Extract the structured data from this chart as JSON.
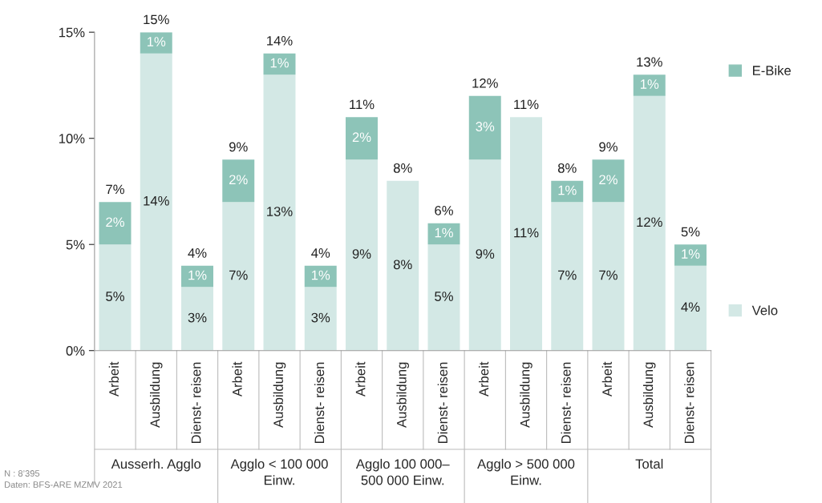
{
  "chart_data": {
    "type": "bar",
    "stacked": true,
    "categories": [
      "Arbeit",
      "Ausbildung",
      "Dienst- reisen",
      "Arbeit",
      "Ausbildung",
      "Dienst- reisen",
      "Arbeit",
      "Ausbildung",
      "Dienst- reisen",
      "Arbeit",
      "Ausbildung",
      "Dienst- reisen",
      "Arbeit",
      "Ausbildung",
      "Dienst- reisen"
    ],
    "series": [
      {
        "name": "Velo",
        "color": "#d3e8e5",
        "values": [
          5,
          14,
          3,
          7,
          13,
          3,
          9,
          8,
          5,
          9,
          11,
          7,
          7,
          12,
          4
        ],
        "value_labels": [
          "5%",
          "14%",
          "3%",
          "7%",
          "13%",
          "3%",
          "9%",
          "8%",
          "5%",
          "9%",
          "11%",
          "7%",
          "7%",
          "12%",
          "4%"
        ]
      },
      {
        "name": "E-Bike",
        "color": "#8dc4b8",
        "values": [
          2,
          1,
          1,
          2,
          1,
          1,
          2,
          0,
          1,
          3,
          0,
          1,
          2,
          1,
          1
        ],
        "value_labels": [
          "2%",
          "1%",
          "1%",
          "2%",
          "1%",
          "1%",
          "2%",
          null,
          "1%",
          "3%",
          null,
          "1%",
          "2%",
          "1%",
          "1%"
        ]
      }
    ],
    "totals": [
      "7%",
      "15%",
      "4%",
      "9%",
      "14%",
      "4%",
      "11%",
      "8%",
      "6%",
      "12%",
      "11%",
      "8%",
      "9%",
      "13%",
      "5%"
    ],
    "ylim": [
      0,
      15
    ],
    "yticks": [
      {
        "value": 0,
        "label": "0%"
      },
      {
        "value": 5,
        "label": "5%"
      },
      {
        "value": 10,
        "label": "10%"
      },
      {
        "value": 15,
        "label": "15%"
      }
    ],
    "grid": false,
    "legend": "right",
    "annotations": [
      "Ausserh. Agglo",
      "Agglo < 100 000\nEinw.",
      "Agglo 100 000–\n500 000 Einw.",
      "Agglo > 500 000\nEinw.",
      "Total",
      "N : 8’395",
      "Daten: BFS-ARE MZMV 2021"
    ]
  }
}
